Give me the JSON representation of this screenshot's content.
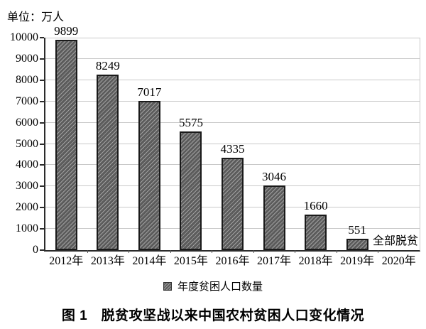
{
  "unit_label": "单位：万人",
  "caption": "图 1　脱贫攻坚战以来中国农村贫困人口变化情况",
  "chart_data": {
    "type": "bar",
    "title": "图 1 脱贫攻坚战以来中国农村贫困人口变化情况",
    "unit": "万人",
    "categories": [
      "2012年",
      "2013年",
      "2014年",
      "2015年",
      "2016年",
      "2017年",
      "2018年",
      "2019年",
      "2020年"
    ],
    "values": [
      9899,
      8249,
      7017,
      5575,
      4335,
      3046,
      1660,
      551,
      null
    ],
    "annotation": {
      "text": "全部脱贫",
      "category": "2020年"
    },
    "legend": [
      {
        "label": "年度贫困人口数量",
        "style": "hatched-square"
      }
    ],
    "xlabel": "",
    "ylabel": "",
    "ylim": [
      0,
      10000
    ],
    "ytick_step": 1000,
    "grid": "horizontal",
    "legend_position": "bottom-center",
    "colors": {
      "bar_fill": "#5c5c5c",
      "bar_hatch": "#9a9a9a",
      "bar_border": "#1a1a1a",
      "gridline": "#c9c9c9",
      "axis": "#2b2b2b",
      "text": "#000000"
    }
  }
}
